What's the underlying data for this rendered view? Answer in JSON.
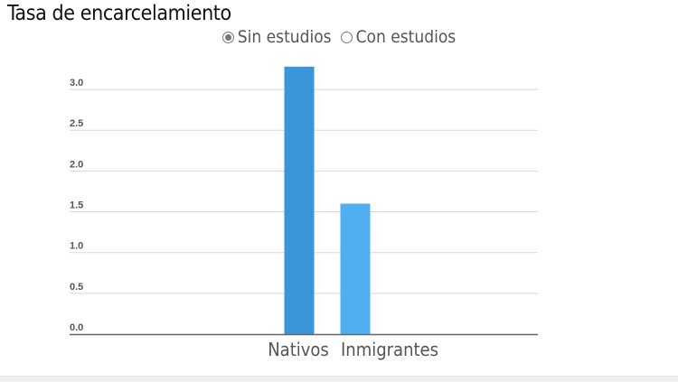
{
  "chart_data": {
    "type": "bar",
    "title": "Tasa de encarcelamiento",
    "categories": [
      "Nativos",
      "Inmigrantes"
    ],
    "values": [
      3.28,
      1.6
    ],
    "colors": [
      "#3a96d9",
      "#50b0ef"
    ],
    "ylim": [
      0,
      3.3
    ],
    "yticks": [
      "0.0",
      "0.5",
      "1.0",
      "1.5",
      "2.0",
      "2.5",
      "3.0"
    ],
    "xlabel": "",
    "ylabel": "",
    "grid": true
  },
  "toggle": {
    "options": [
      {
        "label": "Sin estudios",
        "selected": true
      },
      {
        "label": "Con estudios",
        "selected": false
      }
    ]
  }
}
